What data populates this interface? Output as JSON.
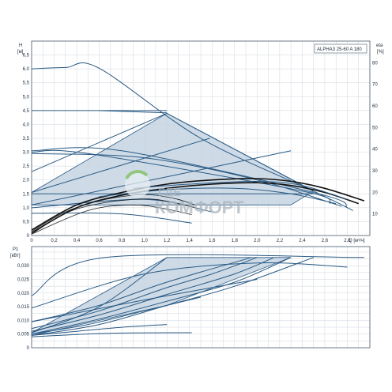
{
  "chart_data": [
    {
      "type": "line",
      "title": "ALPHA3 25-60 A 180",
      "ylabel": "H",
      "yunit": "[м]",
      "y2label": "eta",
      "y2unit": "[%]",
      "xlabel": "Q",
      "xunit": "[м³/ч]",
      "xlim": [
        0,
        3.0
      ],
      "ylim": [
        0,
        7.0
      ],
      "y2lim": [
        0,
        90
      ],
      "grid": true,
      "x_ticks": [
        "0",
        "0,2",
        "0,4",
        "0,6",
        "0,8",
        "1,0",
        "1,2",
        "1,4",
        "1,6",
        "1,8",
        "2,0",
        "2,2",
        "2,4",
        "2,6",
        "2,8"
      ],
      "y_ticks": [
        "0",
        "0,5",
        "1,0",
        "1,5",
        "2,0",
        "2,5",
        "3,0",
        "3,5",
        "4,0",
        "4,5",
        "5,0",
        "5,5",
        "6,0",
        "6,5"
      ],
      "y2_ticks": [
        "10",
        "20",
        "30",
        "40",
        "50",
        "60",
        "70",
        "80"
      ],
      "shaded_region": [
        [
          0,
          1.55
        ],
        [
          1.2,
          4.4
        ],
        [
          2.5,
          1.6
        ],
        [
          2.3,
          1.1
        ],
        [
          0,
          1.1
        ]
      ],
      "series": [
        {
          "values": [
            [
              0,
              6.0
            ],
            [
              0.3,
              6.05
            ],
            [
              0.6,
              6.02
            ],
            [
              1.5,
              3.5
            ],
            [
              2.5,
              1.6
            ],
            [
              2.85,
              0.9
            ]
          ]
        },
        {
          "values": [
            [
              0,
              4.5
            ],
            [
              1.2,
              4.5
            ]
          ]
        },
        {
          "values": [
            [
              0,
              3.05
            ],
            [
              0.8,
              3.05
            ],
            [
              2.55,
              1.5
            ],
            [
              2.8,
              1.0
            ]
          ]
        },
        {
          "values": [
            [
              0,
              2.95
            ],
            [
              1.0,
              2.8
            ],
            [
              2.0,
              2.0
            ],
            [
              2.75,
              1.05
            ]
          ]
        },
        {
          "values": [
            [
              0,
              3.0
            ],
            [
              0.5,
              2.95
            ],
            [
              2.4,
              1.6
            ],
            [
              2.65,
              1.15
            ]
          ]
        },
        {
          "values": [
            [
              0,
              2.3
            ],
            [
              1.2,
              4.4
            ]
          ]
        },
        {
          "values": [
            [
              0,
              1.55
            ],
            [
              1.58,
              3.5
            ]
          ]
        },
        {
          "values": [
            [
              0,
              1.5
            ],
            [
              2.5,
              1.5
            ]
          ]
        },
        {
          "values": [
            [
              0,
              1.0
            ],
            [
              1.0,
              1.3
            ],
            [
              1.6,
              0.85
            ]
          ]
        },
        {
          "values": [
            [
              0,
              0.8
            ],
            [
              0.8,
              0.78
            ],
            [
              1.42,
              0.45
            ]
          ]
        },
        {
          "values": [
            [
              0,
              1.1
            ],
            [
              1.3,
              2.2
            ],
            [
              2.3,
              3.05
            ]
          ]
        },
        {
          "values": [
            [
              0.6,
              4.5
            ],
            [
              1.2,
              4.42
            ]
          ]
        },
        {
          "values": [
            [
              1.2,
              4.4
            ],
            [
              2.5,
              1.6
            ]
          ]
        },
        {
          "values": [
            [
              0,
              0.2
            ],
            [
              0.4,
              1.1
            ],
            [
              0.8,
              1.55
            ],
            [
              1.2,
              1.85
            ],
            [
              1.6,
              2.0
            ],
            [
              2.0,
              2.05
            ],
            [
              2.3,
              1.95
            ],
            [
              2.6,
              1.7
            ],
            [
              2.95,
              1.25
            ]
          ]
        },
        {
          "values": [
            [
              0,
              0.1
            ],
            [
              0.4,
              1.0
            ],
            [
              0.8,
              1.45
            ],
            [
              1.2,
              1.7
            ],
            [
              1.6,
              1.85
            ],
            [
              2.0,
              1.9
            ],
            [
              2.3,
              1.8
            ],
            [
              2.6,
              1.55
            ],
            [
              2.9,
              1.15
            ]
          ]
        },
        {
          "values": [
            [
              0,
              0.15
            ],
            [
              0.3,
              0.85
            ],
            [
              0.6,
              1.25
            ],
            [
              0.9,
              1.45
            ],
            [
              1.1,
              1.45
            ],
            [
              1.3,
              1.3
            ],
            [
              1.45,
              1.1
            ]
          ]
        },
        {
          "values": [
            [
              0,
              0.05
            ],
            [
              0.3,
              0.8
            ],
            [
              0.6,
              1.15
            ],
            [
              0.9,
              1.3
            ],
            [
              1.1,
              1.3
            ],
            [
              1.3,
              1.15
            ],
            [
              1.45,
              1.0
            ]
          ]
        },
        {
          "values": [
            [
              0,
              0.05
            ],
            [
              0.5,
              0.9
            ],
            [
              0.9,
              1.1
            ],
            [
              1.2,
              0.95
            ],
            [
              1.42,
              0.75
            ]
          ]
        },
        {
          "values": [
            [
              0.9,
              1.7
            ],
            [
              1.4,
              1.85
            ],
            [
              2.0,
              1.95
            ],
            [
              2.4,
              1.8
            ],
            [
              2.8,
              1.3
            ]
          ]
        },
        {
          "values": [
            [
              0.6,
              1.4
            ],
            [
              1.2,
              1.65
            ],
            [
              1.8,
              1.7
            ],
            [
              2.3,
              1.5
            ],
            [
              2.7,
              1.15
            ]
          ]
        }
      ]
    },
    {
      "type": "line",
      "ylabel": "P1",
      "yunit": "[кВт]",
      "xlim": [
        0,
        3.0
      ],
      "ylim": [
        0,
        0.037
      ],
      "grid": true,
      "y_ticks": [
        "0",
        "0,005",
        "0,010",
        "0,015",
        "0,020",
        "0,025",
        "0,030"
      ],
      "shaded_region": [
        [
          0,
          0.0055
        ],
        [
          1.2,
          0.033
        ],
        [
          2.3,
          0.033
        ],
        [
          1.2,
          0.0155
        ],
        [
          0,
          0.0045
        ]
      ],
      "series": [
        {
          "values": [
            [
              0,
              0.019
            ],
            [
              0.65,
              0.033
            ],
            [
              2.95,
              0.033
            ]
          ]
        },
        {
          "values": [
            [
              0,
              0.0145
            ],
            [
              1.0,
              0.027
            ],
            [
              2.0,
              0.031
            ],
            [
              2.8,
              0.0295
            ]
          ]
        },
        {
          "values": [
            [
              0,
              0.0095
            ],
            [
              0.6,
              0.0155
            ],
            [
              1.2,
              0.024
            ],
            [
              1.95,
              0.033
            ]
          ]
        },
        {
          "values": [
            [
              0,
              0.007
            ],
            [
              0.6,
              0.0135
            ],
            [
              1.2,
              0.022
            ],
            [
              1.6,
              0.027
            ],
            [
              2.0,
              0.033
            ]
          ]
        },
        {
          "values": [
            [
              0,
              0.006
            ],
            [
              0.6,
              0.012
            ],
            [
              1.2,
              0.0195
            ],
            [
              1.8,
              0.027
            ],
            [
              2.15,
              0.033
            ]
          ]
        },
        {
          "values": [
            [
              0,
              0.005
            ],
            [
              0.6,
              0.0105
            ],
            [
              1.2,
              0.017
            ],
            [
              1.8,
              0.024
            ],
            [
              2.3,
              0.033
            ]
          ]
        },
        {
          "values": [
            [
              0,
              0.0055
            ],
            [
              0.6,
              0.015
            ],
            [
              1.2,
              0.033
            ]
          ]
        },
        {
          "values": [
            [
              0,
              0.0045
            ],
            [
              0.6,
              0.0085
            ],
            [
              1.2,
              0.0155
            ],
            [
              1.8,
              0.0225
            ],
            [
              2.5,
              0.033
            ]
          ]
        },
        {
          "values": [
            [
              0,
              0.005
            ],
            [
              0.5,
              0.0085
            ],
            [
              1.0,
              0.0135
            ],
            [
              1.5,
              0.0185
            ]
          ]
        },
        {
          "values": [
            [
              0,
              0.0045
            ],
            [
              0.4,
              0.006
            ],
            [
              0.8,
              0.0075
            ],
            [
              1.2,
              0.0085
            ]
          ]
        },
        {
          "values": [
            [
              0,
              0.004
            ],
            [
              0.7,
              0.0053
            ],
            [
              1.42,
              0.0055
            ]
          ]
        },
        {
          "values": [
            [
              0,
              0.0095
            ],
            [
              0.5,
              0.0135
            ],
            [
              1.0,
              0.0175
            ],
            [
              1.6,
              0.022
            ],
            [
              2.0,
              0.025
            ]
          ]
        }
      ]
    }
  ],
  "watermark": {
    "line1": "ГДЕ",
    "line2": "КОМФОРТ"
  }
}
